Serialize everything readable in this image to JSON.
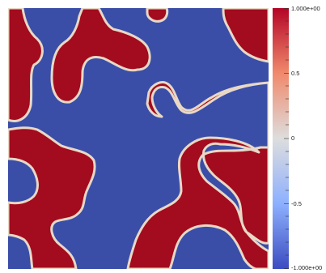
{
  "colormap": {
    "name": "Cool to Warm",
    "stops": [
      "#3b4cc0",
      "#dddddd",
      "#b40426"
    ],
    "field_high_color": "#a30b1e",
    "field_low_color": "#3a4ea8",
    "interface_color": "#e8d8c6"
  },
  "colorbar": {
    "labels": {
      "max": "1.000e+00",
      "q3": "0.5",
      "mid": "0",
      "q1": "-0.5",
      "min": "-1.000e+00"
    }
  }
}
